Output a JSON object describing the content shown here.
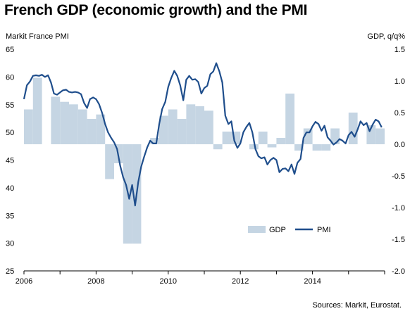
{
  "title": "French GDP (economic growth) and the PMI",
  "source": "Sources: Markit, Eurostat.",
  "colors": {
    "gdp_bar": "#c5d5e3",
    "pmi_line": "#1f4e8c",
    "axis": "#000000"
  },
  "chart_data": {
    "type": "bar+line",
    "left_axis": {
      "label": "Markit France PMI",
      "min": 25,
      "max": 65,
      "ticks": [
        25,
        30,
        35,
        40,
        45,
        50,
        55,
        60,
        65
      ]
    },
    "right_axis": {
      "label": "GDP, q/q%",
      "min": -2.0,
      "max": 1.5,
      "ticks": [
        "-2.0",
        "-1.5",
        "-1.0",
        "-0.5",
        "0.0",
        "0.5",
        "1.0",
        "1.5"
      ]
    },
    "x_axis": {
      "start": 2006.0,
      "end": 2016.0,
      "tick_labels": [
        "2006",
        "2008",
        "2010",
        "2012",
        "2014"
      ],
      "tick_years": [
        2006,
        2008,
        2010,
        2012,
        2014
      ]
    },
    "legend": {
      "position": "bottom-right",
      "items": [
        "GDP",
        "PMI"
      ]
    },
    "series": [
      {
        "name": "GDP",
        "axis": "right",
        "kind": "bar",
        "x": [
          2006.0,
          2006.25,
          2006.5,
          2006.75,
          2007.0,
          2007.25,
          2007.5,
          2007.75,
          2008.0,
          2008.25,
          2008.5,
          2008.75,
          2009.0,
          2009.25,
          2009.5,
          2009.75,
          2010.0,
          2010.25,
          2010.5,
          2010.75,
          2011.0,
          2011.25,
          2011.5,
          2011.75,
          2012.0,
          2012.25,
          2012.5,
          2012.75,
          2013.0,
          2013.25,
          2013.5,
          2013.75,
          2014.0,
          2014.25,
          2014.5,
          2014.75,
          2015.0,
          2015.25,
          2015.5,
          2015.75
        ],
        "values": [
          0.55,
          1.05,
          0.0,
          0.75,
          0.67,
          0.63,
          0.55,
          0.4,
          0.47,
          -0.55,
          -0.3,
          -1.57,
          -1.57,
          0.0,
          0.1,
          0.45,
          0.55,
          0.4,
          0.63,
          0.6,
          0.53,
          -0.08,
          0.2,
          0.2,
          0.0,
          -0.08,
          0.2,
          -0.05,
          0.1,
          0.8,
          -0.1,
          0.25,
          -0.1,
          -0.1,
          0.25,
          0.0,
          0.5,
          0.0,
          0.3,
          0.25
        ]
      },
      {
        "name": "PMI",
        "axis": "left",
        "kind": "line",
        "x": [
          2006.0,
          2006.083,
          2006.167,
          2006.25,
          2006.333,
          2006.417,
          2006.5,
          2006.583,
          2006.667,
          2006.75,
          2006.833,
          2006.917,
          2007.0,
          2007.083,
          2007.167,
          2007.25,
          2007.333,
          2007.417,
          2007.5,
          2007.583,
          2007.667,
          2007.75,
          2007.833,
          2007.917,
          2008.0,
          2008.083,
          2008.167,
          2008.25,
          2008.333,
          2008.417,
          2008.5,
          2008.583,
          2008.667,
          2008.75,
          2008.833,
          2008.917,
          2009.0,
          2009.083,
          2009.167,
          2009.25,
          2009.333,
          2009.417,
          2009.5,
          2009.583,
          2009.667,
          2009.75,
          2009.833,
          2009.917,
          2010.0,
          2010.083,
          2010.167,
          2010.25,
          2010.333,
          2010.417,
          2010.5,
          2010.583,
          2010.667,
          2010.75,
          2010.833,
          2010.917,
          2011.0,
          2011.083,
          2011.167,
          2011.25,
          2011.333,
          2011.417,
          2011.5,
          2011.583,
          2011.667,
          2011.75,
          2011.833,
          2011.917,
          2012.0,
          2012.083,
          2012.167,
          2012.25,
          2012.333,
          2012.417,
          2012.5,
          2012.583,
          2012.667,
          2012.75,
          2012.833,
          2012.917,
          2013.0,
          2013.083,
          2013.167,
          2013.25,
          2013.333,
          2013.417,
          2013.5,
          2013.583,
          2013.667,
          2013.75,
          2013.833,
          2013.917,
          2014.0,
          2014.083,
          2014.167,
          2014.25,
          2014.333,
          2014.417,
          2014.5,
          2014.583,
          2014.667,
          2014.75,
          2014.833,
          2014.917,
          2015.0,
          2015.083,
          2015.167,
          2015.25,
          2015.333,
          2015.417,
          2015.5,
          2015.583,
          2015.667,
          2015.75,
          2015.833,
          2015.917
        ],
        "values": [
          56.0,
          58.5,
          59.2,
          60.2,
          60.3,
          60.2,
          60.4,
          60.0,
          60.3,
          59.0,
          57.0,
          56.8,
          57.2,
          57.6,
          57.7,
          57.3,
          57.2,
          57.3,
          57.2,
          56.9,
          55.3,
          54.4,
          56.0,
          56.3,
          56.0,
          55.1,
          53.5,
          51.5,
          50.0,
          49.0,
          48.2,
          47.0,
          44.0,
          41.9,
          40.5,
          38.0,
          40.5,
          36.8,
          41.0,
          43.8,
          45.6,
          47.3,
          48.5,
          48.0,
          48.0,
          51.5,
          54.2,
          55.5,
          58.2,
          59.8,
          61.1,
          60.2,
          58.5,
          55.8,
          59.5,
          60.2,
          59.5,
          59.6,
          59.1,
          57.0,
          58.0,
          58.4,
          60.5,
          61.0,
          62.5,
          61.0,
          59.0,
          53.0,
          51.5,
          52.0,
          48.5,
          47.2,
          48.0,
          50.0,
          51.0,
          51.7,
          50.0,
          47.0,
          45.7,
          45.3,
          45.5,
          44.2,
          45.0,
          45.4,
          45.0,
          42.8,
          43.4,
          43.5,
          43.0,
          44.2,
          42.5,
          44.5,
          45.2,
          49.0,
          50.0,
          50.0,
          51.1,
          51.9,
          51.5,
          50.3,
          51.2,
          49.1,
          48.5,
          47.8,
          48.2,
          48.8,
          48.5,
          48.0,
          49.5,
          50.1,
          49.2,
          50.5,
          52.0,
          51.3,
          51.7,
          50.2,
          51.4,
          52.3,
          52.0,
          50.9
        ]
      }
    ]
  }
}
